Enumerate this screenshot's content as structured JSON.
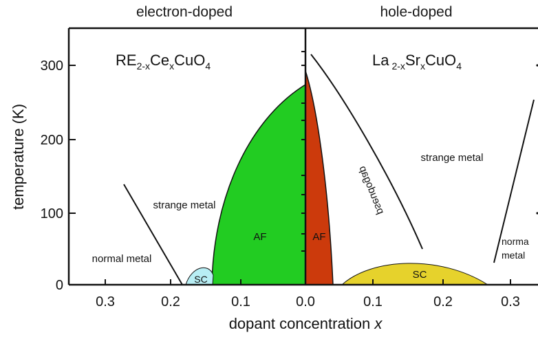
{
  "header": {
    "left_title": "electron-doped",
    "right_title": "hole-doped"
  },
  "axes": {
    "xlabel": "dopant concentration",
    "xlabel_var": "x",
    "ylabel": "temperature (K)",
    "y_ticks": [
      "0",
      "100",
      "200",
      "300"
    ],
    "x_ticks": [
      "0.3",
      "0.2",
      "0.1",
      "0.0",
      "0.1",
      "0.2",
      "0.3"
    ]
  },
  "formulas": {
    "left": {
      "base1": "RE",
      "sub1": "2-x",
      "base2": "Ce",
      "sub2": "x",
      "base3": "CuO",
      "sub3": "4"
    },
    "right": {
      "base1": "La",
      "sub1": "2-x",
      "base2": "Sr",
      "sub2": "x",
      "base3": "CuO",
      "sub3": "4"
    }
  },
  "regions": {
    "af_left": "AF",
    "af_right": "AF",
    "sc_left": "SC",
    "sc_right": "SC",
    "strange_metal_left": "strange metal",
    "normal_metal_left": "normal metal",
    "strange_metal_right": "strange metal",
    "pseudogap": "pseudogap",
    "normal_metal_right_1": "norma",
    "normal_metal_right_2": "metal"
  },
  "colors": {
    "af_electron": "#22cc22",
    "af_hole": "#cc3a0c",
    "sc_electron": "#b8eef4",
    "sc_hole": "#e6d22c"
  }
}
